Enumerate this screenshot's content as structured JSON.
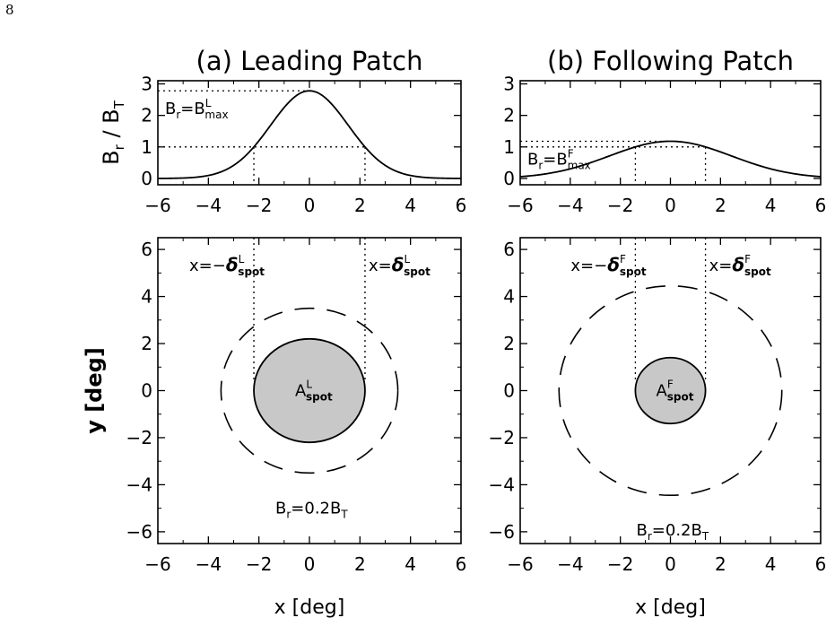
{
  "page_number": "8",
  "chart_data": [
    {
      "id": "a-top",
      "type": "line",
      "title": "(a) Leading Patch",
      "ylabel": "Br / BT",
      "xlim": [
        -6,
        6
      ],
      "ylim": [
        -0.2,
        3.1
      ],
      "xticks": [
        "−6",
        "−4",
        "−2",
        "0",
        "2",
        "4",
        "6"
      ],
      "yticks": [
        "0",
        "1",
        "2",
        "3"
      ],
      "curve": {
        "peak": 2.78,
        "half_width_at_1": 2.2
      },
      "reference_lines": {
        "y_peak": 2.78,
        "y_one": 1.0,
        "x_left": -2.2,
        "x_right": 2.2
      },
      "annotation": {
        "base": "B",
        "sub": "r",
        "eq": "=B",
        "sup": "L",
        "sub2": "max"
      }
    },
    {
      "id": "b-top",
      "type": "line",
      "title": "(b) Following Patch",
      "xlim": [
        -6,
        6
      ],
      "ylim": [
        -0.2,
        3.1
      ],
      "xticks": [
        "−6",
        "−4",
        "−2",
        "0",
        "2",
        "4",
        "6"
      ],
      "yticks": [
        "0",
        "1",
        "2",
        "3"
      ],
      "curve": {
        "peak": 1.18,
        "half_width_at_1": 1.4
      },
      "reference_lines": {
        "y_peak": 1.18,
        "y_one": 1.0,
        "x_left": -1.4,
        "x_right": 1.4
      },
      "annotation": {
        "base": "B",
        "sub": "r",
        "eq": "=B",
        "sup": "F",
        "sub2": "max"
      }
    },
    {
      "id": "a-bottom",
      "type": "scatter",
      "xlabel": "x [deg]",
      "ylabel": "y [deg]",
      "xlim": [
        -6,
        6
      ],
      "ylim": [
        -6.5,
        6.5
      ],
      "xticks": [
        "−6",
        "−4",
        "−2",
        "0",
        "2",
        "4",
        "6"
      ],
      "yticks": [
        "−6",
        "−4",
        "−2",
        "0",
        "2",
        "4",
        "6"
      ],
      "spot_radius": 2.2,
      "dashed_radius": 3.5,
      "vertical_lines_x": [
        -2.2,
        2.2
      ],
      "spot_label": {
        "base": "A",
        "sup": "L",
        "sub": "spot"
      },
      "left_label": {
        "pre": "x=−",
        "greek": "δ",
        "sup": "L",
        "sub": "spot"
      },
      "right_label": {
        "pre": "x=",
        "greek": "δ",
        "sup": "L",
        "sub": "spot"
      },
      "contour_label": {
        "base": "B",
        "sub": "r",
        "mid": "=0.2B",
        "sub2": "T"
      }
    },
    {
      "id": "b-bottom",
      "type": "scatter",
      "xlabel": "x [deg]",
      "xlim": [
        -6,
        6
      ],
      "ylim": [
        -6.5,
        6.5
      ],
      "xticks": [
        "−6",
        "−4",
        "−2",
        "0",
        "2",
        "4",
        "6"
      ],
      "yticks": [
        "−6",
        "−4",
        "−2",
        "0",
        "2",
        "4",
        "6"
      ],
      "spot_radius": 1.4,
      "dashed_radius": 4.45,
      "vertical_lines_x": [
        -1.4,
        1.4
      ],
      "spot_label": {
        "base": "A",
        "sup": "F",
        "sub": "spot"
      },
      "left_label": {
        "pre": "x=−",
        "greek": "δ",
        "sup": "F",
        "sub": "spot"
      },
      "right_label": {
        "pre": "x=",
        "greek": "δ",
        "sup": "F",
        "sub": "spot"
      },
      "contour_label": {
        "base": "B",
        "sub": "r",
        "mid": "=0.2B",
        "sub2": "T"
      }
    }
  ]
}
